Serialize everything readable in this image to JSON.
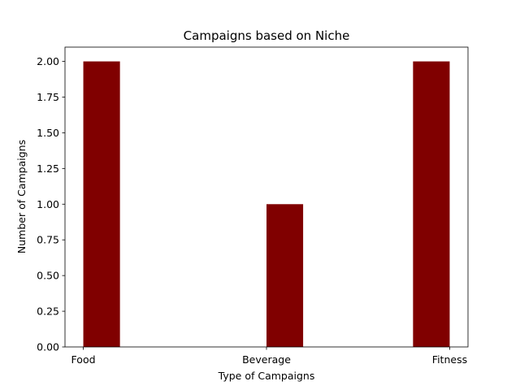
{
  "chart_data": {
    "type": "bar",
    "title": "Campaigns based on Niche",
    "xlabel": "Type of Campaigns",
    "ylabel": "Number of Campaigns",
    "categories": [
      "Food",
      "Beverage",
      "Fitness"
    ],
    "values": [
      2,
      1,
      2
    ],
    "bar_positions": [
      0.1,
      1.1,
      1.9
    ],
    "xlim": [
      -0.1,
      2.1
    ],
    "ylim": [
      0,
      2.1
    ],
    "yticks": [
      0.0,
      0.25,
      0.5,
      0.75,
      1.0,
      1.25,
      1.5,
      1.75,
      2.0
    ],
    "ytick_labels": [
      "0.00",
      "0.25",
      "0.50",
      "0.75",
      "1.00",
      "1.25",
      "1.50",
      "1.75",
      "2.00"
    ],
    "xtick_positions": [
      0,
      1,
      2
    ],
    "bar_width": 0.2,
    "bar_color": "#800000",
    "grid": false,
    "legend": "none"
  }
}
